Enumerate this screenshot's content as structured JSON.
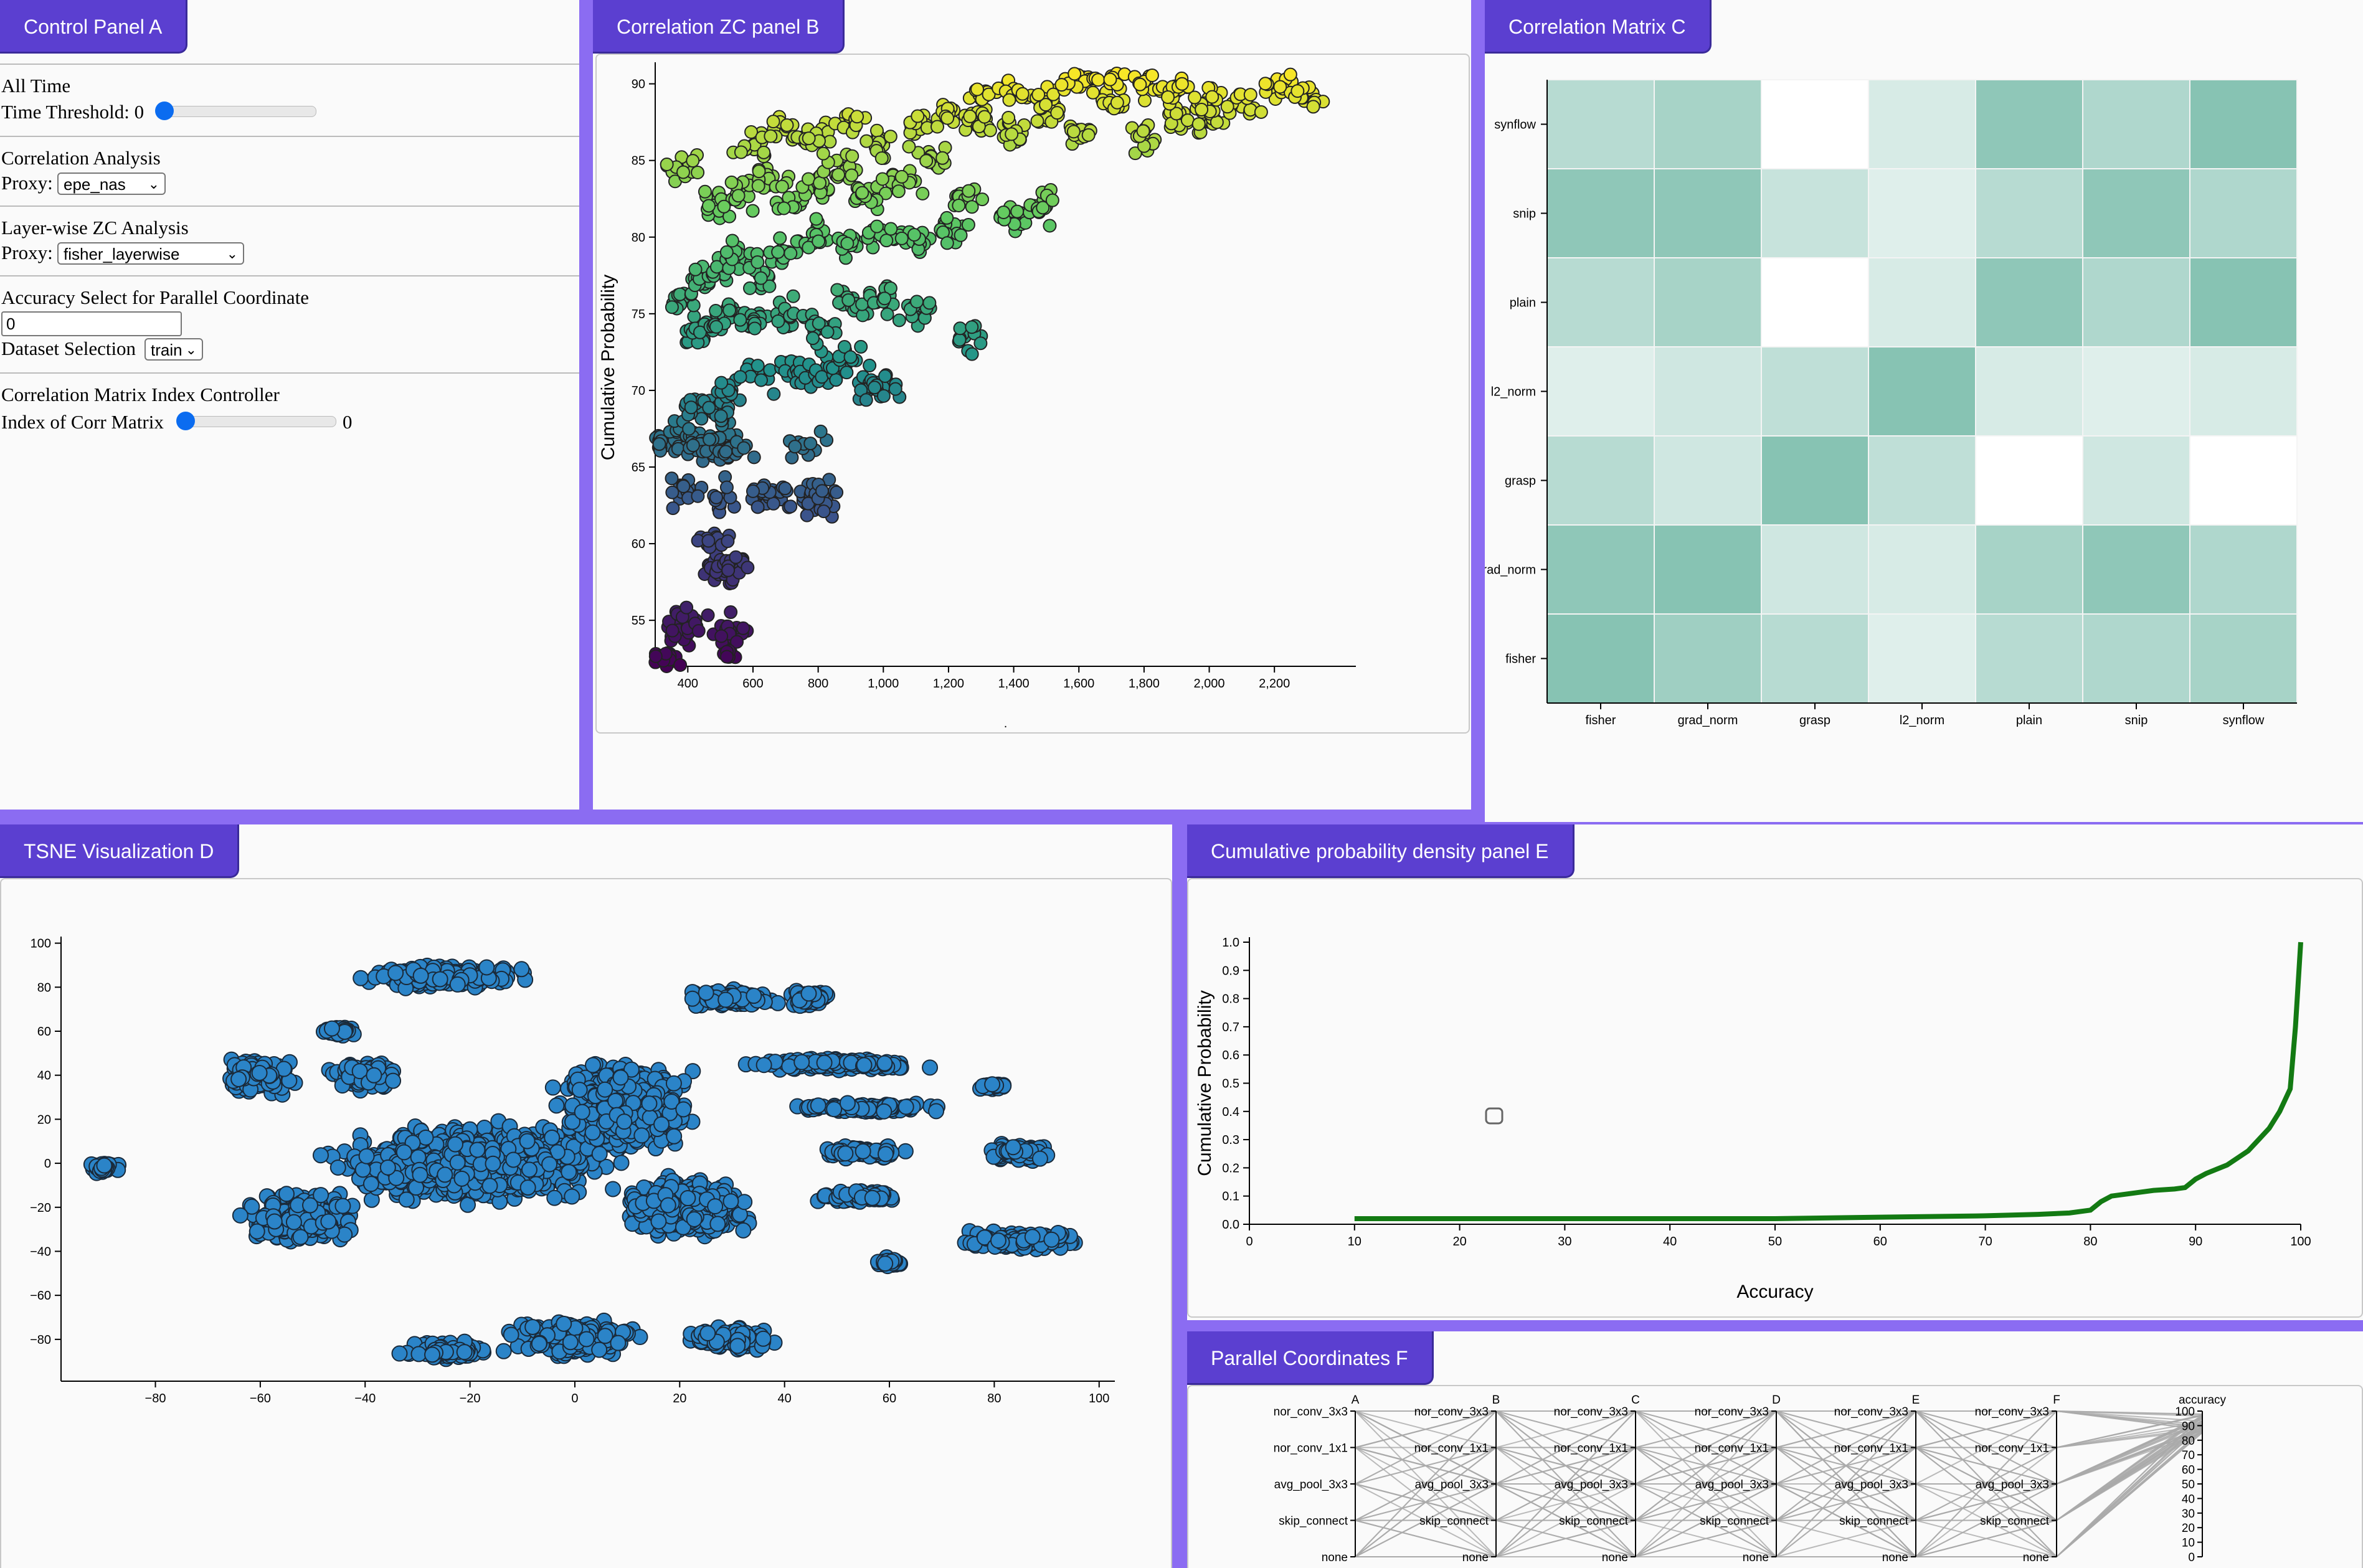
{
  "panels": {
    "a_title": "Control Panel A",
    "b_title": "Correlation ZC panel B",
    "c_title": "Correlation Matrix C",
    "d_title": "TSNE Visualization D",
    "e_title": "Cumulative probability density panel E",
    "f_title": "Parallel Coordinates F"
  },
  "control_panel": {
    "time_heading": "All Time",
    "time_threshold_label": "Time Threshold: 0",
    "time_threshold_value": 0,
    "corr_heading": "Correlation Analysis",
    "proxy_label": "Proxy:",
    "corr_proxy_value": "epe_nas",
    "layer_heading": "Layer-wise ZC Analysis",
    "layer_proxy_label": "Proxy:",
    "layer_proxy_value": "fisher_layerwise",
    "accuracy_heading": "Accuracy Select for Parallel Coordinate",
    "accuracy_value": "0",
    "dataset_label": "Dataset Selection",
    "dataset_value": "train",
    "matrix_heading": "Correlation Matrix Index Controller",
    "matrix_index_label": "Index of Corr Matrix",
    "matrix_index_value": "0"
  },
  "chart_data": [
    {
      "id": "B",
      "type": "scatter",
      "ylabel": "Cumulative Probability",
      "xlabel": ".",
      "xlim": [
        300,
        2450
      ],
      "ylim": [
        52,
        91
      ],
      "x_ticks": [
        "400",
        "600",
        "800",
        "1,000",
        "1,200",
        "1,400",
        "1,600",
        "1,800",
        "2,000",
        "2,200"
      ],
      "x_tick_values": [
        400,
        600,
        800,
        1000,
        1200,
        1400,
        1600,
        1800,
        2000,
        2200
      ],
      "y_ticks": [
        "55",
        "60",
        "65",
        "70",
        "75",
        "80",
        "85",
        "90"
      ],
      "y_tick_values": [
        55,
        60,
        65,
        70,
        75,
        80,
        85,
        90
      ],
      "colormap": [
        "#440154",
        "#3b528b",
        "#21918c",
        "#5ec962",
        "#fde725"
      ],
      "points": [
        [
          320,
          52.5
        ],
        [
          335,
          52
        ],
        [
          380,
          54
        ],
        [
          410,
          55
        ],
        [
          520,
          54.5
        ],
        [
          530,
          53.5
        ],
        [
          480,
          58.5
        ],
        [
          510,
          58.3
        ],
        [
          545,
          58.8
        ],
        [
          490,
          60.2
        ],
        [
          380,
          63.5
        ],
        [
          490,
          63
        ],
        [
          640,
          63
        ],
        [
          660,
          63.5
        ],
        [
          760,
          63
        ],
        [
          810,
          63.2
        ],
        [
          815,
          62.5
        ],
        [
          330,
          66.5
        ],
        [
          370,
          67
        ],
        [
          400,
          66.8
        ],
        [
          450,
          66.5
        ],
        [
          470,
          66
        ],
        [
          520,
          66.8
        ],
        [
          530,
          66.3
        ],
        [
          760,
          66.5
        ],
        [
          420,
          69
        ],
        [
          480,
          68.5
        ],
        [
          520,
          70
        ],
        [
          600,
          71
        ],
        [
          720,
          71.5
        ],
        [
          760,
          71
        ],
        [
          820,
          71.2
        ],
        [
          880,
          71.8
        ],
        [
          950,
          70.5
        ],
        [
          1000,
          70.2
        ],
        [
          410,
          73.5
        ],
        [
          460,
          74
        ],
        [
          520,
          75
        ],
        [
          600,
          74.5
        ],
        [
          700,
          75
        ],
        [
          800,
          74
        ],
        [
          900,
          75.5
        ],
        [
          1000,
          76
        ],
        [
          1100,
          75
        ],
        [
          1250,
          73.5
        ],
        [
          380,
          76
        ],
        [
          440,
          77
        ],
        [
          500,
          78
        ],
        [
          560,
          78.5
        ],
        [
          620,
          77.5
        ],
        [
          700,
          79
        ],
        [
          800,
          80
        ],
        [
          900,
          79.5
        ],
        [
          1000,
          80
        ],
        [
          1100,
          79.8
        ],
        [
          1200,
          80.5
        ],
        [
          370,
          84.5
        ],
        [
          480,
          82
        ],
        [
          560,
          83
        ],
        [
          640,
          84
        ],
        [
          720,
          82.5
        ],
        [
          800,
          83.5
        ],
        [
          880,
          84.5
        ],
        [
          960,
          82.8
        ],
        [
          1050,
          83.5
        ],
        [
          1150,
          85
        ],
        [
          1250,
          82.5
        ],
        [
          1400,
          81.5
        ],
        [
          1500,
          82
        ],
        [
          600,
          86
        ],
        [
          700,
          87
        ],
        [
          800,
          86.5
        ],
        [
          900,
          87.5
        ],
        [
          1000,
          86
        ],
        [
          1100,
          87
        ],
        [
          1200,
          88
        ],
        [
          1300,
          87.5
        ],
        [
          1400,
          86.8
        ],
        [
          1500,
          88
        ],
        [
          1600,
          87
        ],
        [
          1700,
          88.5
        ],
        [
          1800,
          86.5
        ],
        [
          1900,
          88
        ],
        [
          2000,
          87.5
        ],
        [
          1300,
          89
        ],
        [
          1400,
          89.5
        ],
        [
          1500,
          89
        ],
        [
          1600,
          90
        ],
        [
          1700,
          90.5
        ],
        [
          1800,
          90
        ],
        [
          1900,
          89.5
        ],
        [
          2000,
          89
        ],
        [
          2100,
          88.5
        ],
        [
          2200,
          89.5
        ],
        [
          2300,
          89
        ]
      ],
      "color_by": "y"
    },
    {
      "id": "C",
      "type": "heatmap",
      "rows": [
        "synflow",
        "snip",
        "plain",
        "l2_norm",
        "grasp",
        "grad_norm",
        "fisher"
      ],
      "cols": [
        "fisher",
        "grad_norm",
        "grasp",
        "l2_norm",
        "plain",
        "snip",
        "synflow"
      ],
      "values": [
        [
          0.45,
          0.55,
          0.0,
          0.25,
          0.7,
          0.5,
          0.75
        ],
        [
          0.7,
          0.7,
          0.35,
          0.2,
          0.45,
          0.7,
          0.5
        ],
        [
          0.45,
          0.55,
          0.0,
          0.25,
          0.7,
          0.5,
          0.75
        ],
        [
          0.2,
          0.3,
          0.4,
          0.75,
          0.25,
          0.2,
          0.25
        ],
        [
          0.45,
          0.3,
          0.75,
          0.4,
          0.0,
          0.3,
          0.0
        ],
        [
          0.7,
          0.75,
          0.3,
          0.25,
          0.55,
          0.7,
          0.5
        ],
        [
          0.75,
          0.6,
          0.45,
          0.2,
          0.45,
          0.5,
          0.55
        ]
      ],
      "color_high": "#5faf9a"
    },
    {
      "id": "D",
      "type": "scatter",
      "xlim": [
        -98,
        103
      ],
      "ylim": [
        -99,
        103
      ],
      "x_ticks": [
        "−80",
        "−60",
        "−40",
        "−20",
        "0",
        "20",
        "40",
        "60",
        "80",
        "100"
      ],
      "x_tick_values": [
        -80,
        -60,
        -40,
        -20,
        0,
        20,
        40,
        60,
        80,
        100
      ],
      "y_ticks": [
        "100",
        "80",
        "60",
        "40",
        "20",
        "0",
        "−20",
        "−40",
        "−60",
        "−80"
      ],
      "y_tick_values": [
        100,
        80,
        60,
        40,
        20,
        0,
        -20,
        -40,
        -60,
        -80
      ],
      "point_color": "#2b84c8",
      "clusters": [
        [
          -20,
          0,
          38,
          26
        ],
        [
          -25,
          85,
          22,
          8
        ],
        [
          -60,
          40,
          10,
          12
        ],
        [
          -40,
          40,
          10,
          10
        ],
        [
          -52,
          -25,
          16,
          16
        ],
        [
          10,
          25,
          18,
          30
        ],
        [
          20,
          -20,
          18,
          20
        ],
        [
          30,
          75,
          12,
          6
        ],
        [
          45,
          75,
          6,
          6
        ],
        [
          0,
          -80,
          18,
          12
        ],
        [
          30,
          -80,
          12,
          8
        ],
        [
          -25,
          -85,
          14,
          6
        ],
        [
          -90,
          -2,
          4,
          4
        ],
        [
          50,
          45,
          25,
          4
        ],
        [
          55,
          25,
          20,
          3
        ],
        [
          55,
          5,
          12,
          4
        ],
        [
          55,
          -15,
          12,
          4
        ],
        [
          85,
          5,
          10,
          6
        ],
        [
          85,
          -35,
          18,
          6
        ],
        [
          60,
          -45,
          4,
          3
        ],
        [
          80,
          35,
          4,
          2
        ],
        [
          -45,
          60,
          5,
          3
        ]
      ]
    },
    {
      "id": "E",
      "type": "line",
      "xlabel": "Accuracy",
      "ylabel": "Cumulative Probability",
      "xlim": [
        0,
        100
      ],
      "ylim": [
        0,
        1.0
      ],
      "x_ticks": [
        "0",
        "10",
        "20",
        "30",
        "40",
        "50",
        "60",
        "70",
        "80",
        "90",
        "100"
      ],
      "x_tick_values": [
        0,
        10,
        20,
        30,
        40,
        50,
        60,
        70,
        80,
        90,
        100
      ],
      "y_ticks": [
        "0.0",
        "0.1",
        "0.2",
        "0.3",
        "0.4",
        "0.5",
        "0.6",
        "0.7",
        "0.8",
        "0.9",
        "1.0"
      ],
      "y_tick_values": [
        0,
        0.1,
        0.2,
        0.3,
        0.4,
        0.5,
        0.6,
        0.7,
        0.8,
        0.9,
        1.0
      ],
      "line_color": "#137a13",
      "x": [
        10,
        20,
        30,
        40,
        50,
        60,
        70,
        75,
        78,
        80,
        81,
        82,
        84,
        86,
        88,
        89,
        90,
        91,
        93,
        95,
        96,
        97,
        98,
        99,
        99.5,
        100
      ],
      "y": [
        0.02,
        0.02,
        0.02,
        0.02,
        0.02,
        0.025,
        0.03,
        0.035,
        0.04,
        0.05,
        0.08,
        0.1,
        0.11,
        0.12,
        0.125,
        0.13,
        0.16,
        0.18,
        0.21,
        0.26,
        0.3,
        0.34,
        0.4,
        0.48,
        0.7,
        1.0
      ]
    },
    {
      "id": "F",
      "type": "parallel",
      "axes": [
        "A",
        "B",
        "C",
        "D",
        "E",
        "F",
        "accuracy"
      ],
      "categories": [
        "nor_conv_3x3",
        "nor_conv_1x1",
        "avg_pool_3x3",
        "skip_connect",
        "none"
      ],
      "accuracy_ticks": [
        "100",
        "90",
        "80",
        "70",
        "60",
        "50",
        "40",
        "30",
        "20",
        "10",
        "0"
      ]
    }
  ]
}
